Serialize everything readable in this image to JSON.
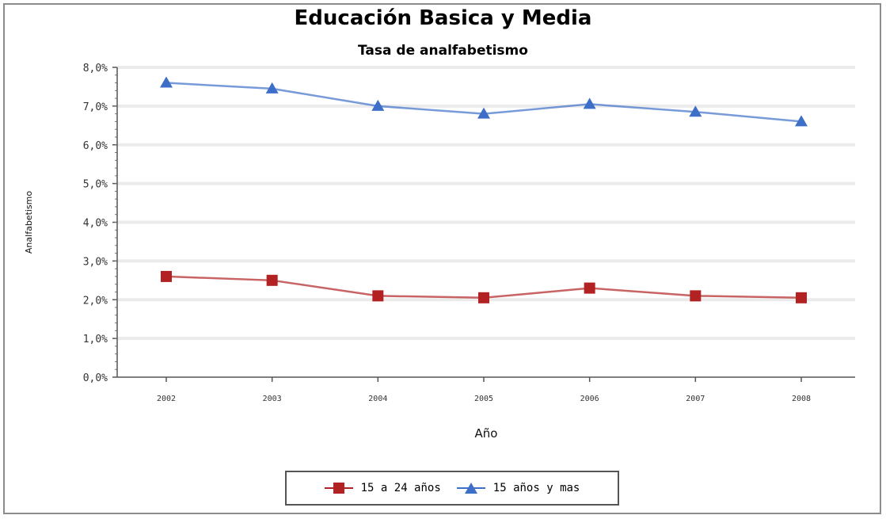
{
  "chart_data": {
    "type": "line",
    "title": "Educación Basica y Media",
    "subtitle": "Tasa de analfabetismo",
    "xlabel": "Año",
    "ylabel": "Analfabetismo",
    "categories": [
      "2002",
      "2003",
      "2004",
      "2005",
      "2006",
      "2007",
      "2008"
    ],
    "y_ticks": [
      "0,0%",
      "1,0%",
      "2,0%",
      "3,0%",
      "4,0%",
      "5,0%",
      "6,0%",
      "7,0%",
      "8,0%"
    ],
    "ylim": [
      0,
      8
    ],
    "grid": true,
    "legend_position": "bottom",
    "series": [
      {
        "name": "15 a 24 años",
        "color": "#b22222",
        "marker": "square",
        "values": [
          2.6,
          2.5,
          2.1,
          2.05,
          2.3,
          2.1,
          2.05
        ]
      },
      {
        "name": "15 años y mas",
        "color": "#3d6fc9",
        "marker": "triangle",
        "values": [
          7.6,
          7.45,
          7.0,
          6.8,
          7.05,
          6.85,
          6.6
        ]
      }
    ]
  }
}
